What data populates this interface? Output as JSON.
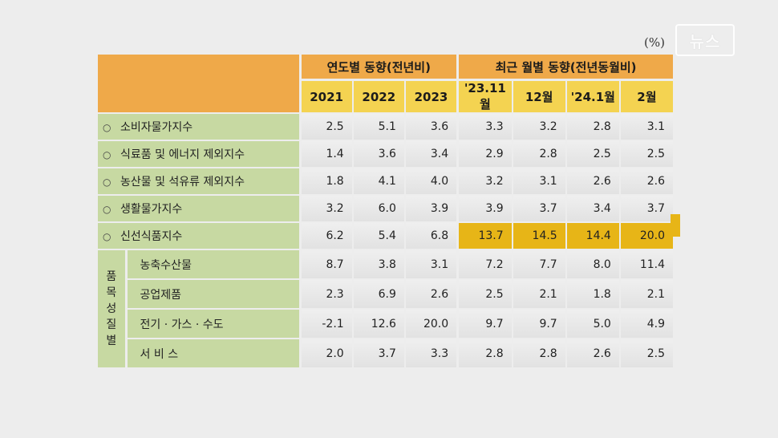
{
  "unit": "(%)",
  "watermark": "뉴스",
  "table": {
    "group_headers": [
      "연도별 동향(전년비)",
      "최근 월별 동향(전년동월비)"
    ],
    "column_headers": [
      "2021",
      "2022",
      "2023",
      "'23.11월",
      "12월",
      "'24.1월",
      "2월"
    ],
    "rows": [
      {
        "bullet": "○",
        "label": "소비자물가지수",
        "values": [
          "2.5",
          "5.1",
          "3.6",
          "3.3",
          "3.2",
          "2.8",
          "3.1"
        ]
      },
      {
        "bullet": "○",
        "label": "식료품 및 에너지 제외지수",
        "values": [
          "1.4",
          "3.6",
          "3.4",
          "2.9",
          "2.8",
          "2.5",
          "2.5"
        ]
      },
      {
        "bullet": "○",
        "label": "농산물 및 석유류 제외지수",
        "values": [
          "1.8",
          "4.1",
          "4.0",
          "3.2",
          "3.1",
          "2.6",
          "2.6"
        ]
      },
      {
        "bullet": "○",
        "label": "생활물가지수",
        "values": [
          "3.2",
          "6.0",
          "3.9",
          "3.9",
          "3.7",
          "3.4",
          "3.7"
        ]
      },
      {
        "bullet": "○",
        "label": "신선식품지수",
        "values": [
          "6.2",
          "5.4",
          "6.8",
          "13.7",
          "14.5",
          "14.4",
          "20.0"
        ]
      }
    ],
    "group_label_chars": [
      "품",
      "목",
      "성",
      "질",
      "별"
    ],
    "sub_rows": [
      {
        "label": "농축수산물",
        "values": [
          "8.7",
          "3.8",
          "3.1",
          "7.2",
          "7.7",
          "8.0",
          "11.4"
        ]
      },
      {
        "label": "공업제품",
        "values": [
          "2.3",
          "6.9",
          "2.6",
          "2.5",
          "2.1",
          "1.8",
          "2.1"
        ]
      },
      {
        "label": "전기 · 가스 · 수도",
        "values": [
          "-2.1",
          "12.6",
          "20.0",
          "9.7",
          "9.7",
          "5.0",
          "4.9"
        ]
      },
      {
        "label": "서 비 스",
        "values": [
          "2.0",
          "3.7",
          "3.3",
          "2.8",
          "2.8",
          "2.6",
          "2.5"
        ]
      }
    ],
    "highlight_color": "#e7b517"
  }
}
